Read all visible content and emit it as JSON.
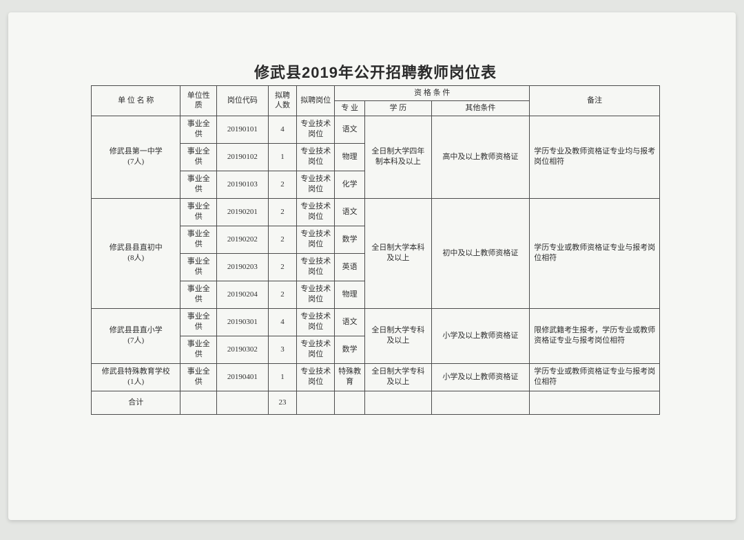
{
  "title": "修武县2019年公开招聘教师岗位表",
  "headers": {
    "unit": "单 位 名 称",
    "nature": "单位性质",
    "code": "岗位代码",
    "count": "拟聘人数",
    "post": "拟聘岗位",
    "qual_group": "资  格  条  件",
    "major": "专 业",
    "edu": "学  历",
    "other": "其他条件",
    "remark": "备注"
  },
  "groups": [
    {
      "unit": "修武县第一中学\n(7人)",
      "edu": "全日制大学四年制本科及以上",
      "other": "高中及以上教师资格证",
      "remark": "学历专业及教师资格证专业均与报考岗位相符",
      "rows": [
        {
          "nature": "事业全供",
          "code": "20190101",
          "count": "4",
          "post": "专业技术岗位",
          "major": "语文"
        },
        {
          "nature": "事业全供",
          "code": "20190102",
          "count": "1",
          "post": "专业技术岗位",
          "major": "物理"
        },
        {
          "nature": "事业全供",
          "code": "20190103",
          "count": "2",
          "post": "专业技术岗位",
          "major": "化学"
        }
      ]
    },
    {
      "unit": "修武县县直初中\n(8人)",
      "edu": "全日制大学本科及以上",
      "other": "初中及以上教师资格证",
      "remark": "学历专业或教师资格证专业与报考岗位相符",
      "rows": [
        {
          "nature": "事业全供",
          "code": "20190201",
          "count": "2",
          "post": "专业技术岗位",
          "major": "语文"
        },
        {
          "nature": "事业全供",
          "code": "20190202",
          "count": "2",
          "post": "专业技术岗位",
          "major": "数学"
        },
        {
          "nature": "事业全供",
          "code": "20190203",
          "count": "2",
          "post": "专业技术岗位",
          "major": "英语"
        },
        {
          "nature": "事业全供",
          "code": "20190204",
          "count": "2",
          "post": "专业技术岗位",
          "major": "物理"
        }
      ]
    },
    {
      "unit": "修武县县直小学\n(7人)",
      "edu": "全日制大学专科及以上",
      "other": "小学及以上教师资格证",
      "remark": "限修武籍考生报考，学历专业或教师资格证专业与报考岗位相符",
      "rows": [
        {
          "nature": "事业全供",
          "code": "20190301",
          "count": "4",
          "post": "专业技术岗位",
          "major": "语文"
        },
        {
          "nature": "事业全供",
          "code": "20190302",
          "count": "3",
          "post": "专业技术岗位",
          "major": "数学"
        }
      ]
    },
    {
      "unit": "修武县特殊教育学校\n(1人)",
      "edu": "全日制大学专科及以上",
      "other": "小学及以上教师资格证",
      "remark": "学历专业或教师资格证专业与报考岗位相符",
      "rows": [
        {
          "nature": "事业全供",
          "code": "20190401",
          "count": "1",
          "post": "专业技术岗位",
          "major": "特殊教育"
        }
      ]
    }
  ],
  "total": {
    "label": "合计",
    "count": "23"
  },
  "styling": {
    "page_bg": "#f6f7f4",
    "outer_bg": "#e4e6e3",
    "border_color": "#4a4a4a",
    "text_color": "#2f2f2f",
    "title_fontsize": 22,
    "cell_fontsize": 11
  }
}
